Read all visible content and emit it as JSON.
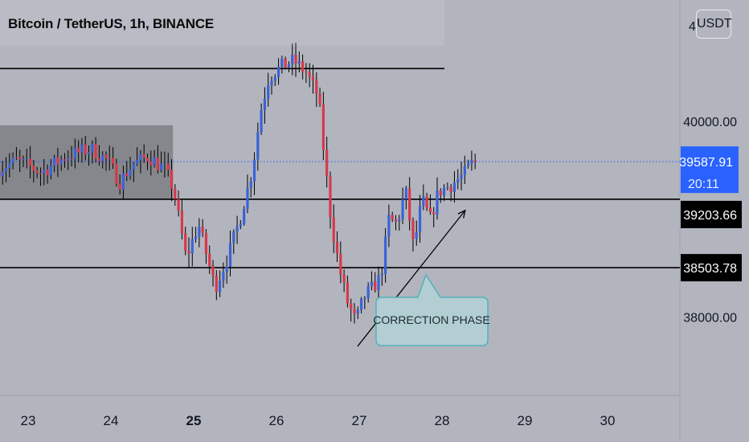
{
  "header": {
    "title": "Bitcoin / TetherUS, 1h, BINANCE",
    "currency_label": "USDT",
    "clipped_price_label": "4"
  },
  "annotation": {
    "callout_text": "CORRECTION PHASE"
  },
  "price_tags": {
    "current_price": "39587.91",
    "countdown": "20:11",
    "level_1": "39203.66",
    "level_2": "38503.78"
  },
  "colors": {
    "background": "#b2b5be",
    "bull": "#3a63d6",
    "bear": "#d9384a",
    "current_tag": "#2962ff",
    "level_tag": "#000000"
  },
  "chart_data": {
    "type": "candlestick",
    "symbol": "Bitcoin / TetherUS",
    "timeframe": "1h",
    "exchange": "BINANCE",
    "x_tick_labels": [
      "23",
      "24",
      "25",
      "26",
      "27",
      "28",
      "29",
      "30"
    ],
    "y_tick_labels": [
      "40000.00",
      "38000.00"
    ],
    "ylim": [
      37520,
      41350
    ],
    "current_price": 39587.91,
    "horizontal_levels": [
      40540,
      39203.66,
      38503.78
    ],
    "range_box": {
      "from_day": 22.65,
      "to_day": 24.75,
      "low": 39200,
      "high": 39960
    },
    "trend_arrow": {
      "from": [
        26.98,
        37700
      ],
      "to": [
        28.28,
        39090
      ]
    },
    "ohlc_path": [
      [
        22.65,
        39500
      ],
      [
        22.9,
        39600
      ],
      [
        23.2,
        39480
      ],
      [
        23.5,
        39640
      ],
      [
        23.8,
        39720
      ],
      [
        24.0,
        39600
      ],
      [
        24.15,
        39380
      ],
      [
        24.3,
        39560
      ],
      [
        24.5,
        39640
      ],
      [
        24.7,
        39500
      ],
      [
        24.8,
        39300
      ],
      [
        24.95,
        38600
      ],
      [
        25.1,
        38950
      ],
      [
        25.3,
        38300
      ],
      [
        25.45,
        38600
      ],
      [
        25.6,
        39000
      ],
      [
        25.75,
        39500
      ],
      [
        25.85,
        40100
      ],
      [
        25.95,
        40450
      ],
      [
        26.1,
        40560
      ],
      [
        26.25,
        40620
      ],
      [
        26.4,
        40500
      ],
      [
        26.55,
        40250
      ],
      [
        26.6,
        39800
      ],
      [
        26.7,
        39000
      ],
      [
        26.8,
        38500
      ],
      [
        26.9,
        38150
      ],
      [
        27.0,
        37950
      ],
      [
        27.1,
        38200
      ],
      [
        27.3,
        38400
      ],
      [
        27.4,
        39000
      ],
      [
        27.5,
        38950
      ],
      [
        27.6,
        39300
      ],
      [
        27.7,
        38700
      ],
      [
        27.8,
        39200
      ],
      [
        27.9,
        39000
      ],
      [
        28.0,
        39280
      ],
      [
        28.15,
        39350
      ],
      [
        28.3,
        39450
      ],
      [
        28.42,
        39590
      ]
    ]
  }
}
